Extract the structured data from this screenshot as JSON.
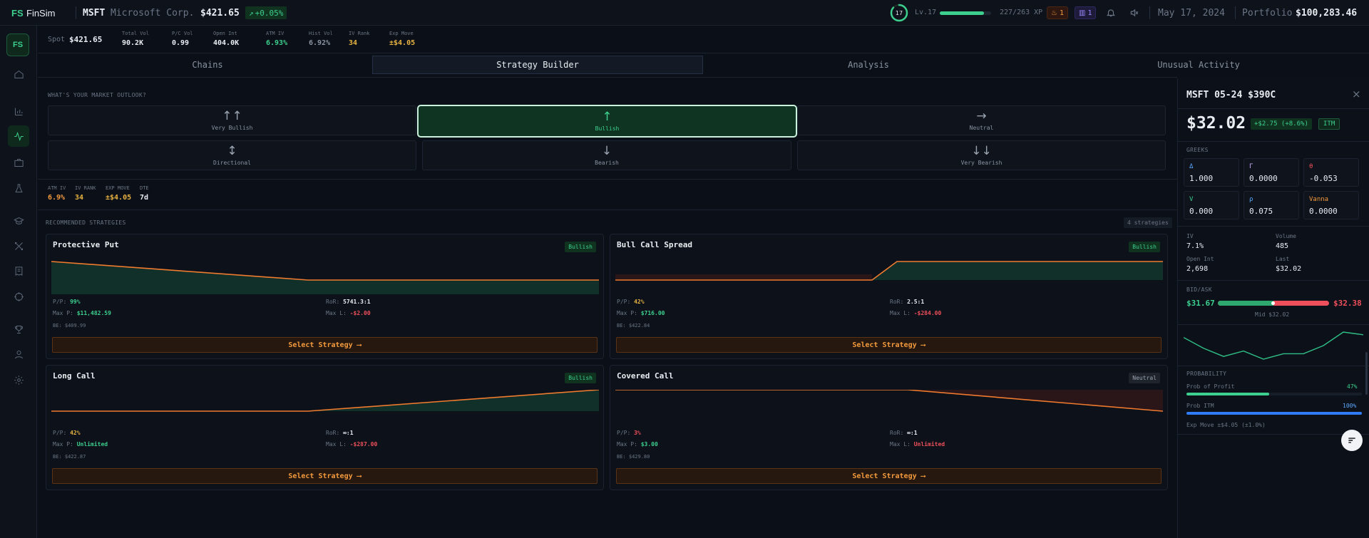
{
  "app": {
    "logo": "FS",
    "name": "FinSim"
  },
  "ticker": {
    "symbol": "MSFT",
    "company": "Microsoft Corp.",
    "price": "$421.65",
    "change": "+0.05%"
  },
  "player": {
    "level_ring": "17",
    "level": "Lv.17",
    "xp": "227/263 XP",
    "xp_fraction": 0.863,
    "streak": "1",
    "notices": "1"
  },
  "date": "May 17, 2024",
  "portfolio": {
    "label": "Portfolio",
    "value": "$100,283.46"
  },
  "stats": {
    "spot_label": "Spot",
    "spot": "$421.65",
    "items": [
      {
        "label": "Total Vol",
        "value": "90.2K"
      },
      {
        "label": "P/C Vol",
        "value": "0.99"
      },
      {
        "label": "Open Int",
        "value": "404.0K"
      },
      {
        "label": "ATM IV",
        "value": "6.93%"
      },
      {
        "label": "Hist Vol",
        "value": "6.92%"
      },
      {
        "label": "IV Rank",
        "value": "34"
      },
      {
        "label": "Exp Move",
        "value": "±$4.05"
      }
    ]
  },
  "tabs": [
    "Chains",
    "Strategy Builder",
    "Analysis",
    "Unusual Activity"
  ],
  "outlook": {
    "heading": "WHAT'S YOUR MARKET OUTLOOK?",
    "options": [
      {
        "label": "Very Bullish",
        "arrow": "↑↑"
      },
      {
        "label": "Bullish",
        "arrow": "↑"
      },
      {
        "label": "Neutral",
        "arrow": "→"
      },
      {
        "label": "Directional",
        "arrow": "↕"
      },
      {
        "label": "Bearish",
        "arrow": "↓"
      },
      {
        "label": "Very Bearish",
        "arrow": "↓↓"
      }
    ],
    "selected": "Bullish"
  },
  "mini_stats": [
    {
      "label": "ATM IV",
      "value": "6.9%"
    },
    {
      "label": "IV RANK",
      "value": "34"
    },
    {
      "label": "EXP MOVE",
      "value": "±$4.05"
    },
    {
      "label": "DTE",
      "value": "7d"
    }
  ],
  "recommended": {
    "heading": "RECOMMENDED STRATEGIES",
    "count": "4 strategies"
  },
  "strategies": [
    {
      "name": "Protective Put",
      "badge": "Bullish",
      "pp_label": "P/P:",
      "pp": "99%",
      "maxp_label": "Max P:",
      "maxp": "$11,482.59",
      "be": "BE: $409.99",
      "ror_label": "RoR:",
      "ror": "5741.3:1",
      "maxl_label": "Max L:",
      "maxl": "-$2.00",
      "button": "Select Strategy ⟶"
    },
    {
      "name": "Bull Call Spread",
      "badge": "Bullish",
      "pp_label": "P/P:",
      "pp": "42%",
      "maxp_label": "Max P:",
      "maxp": "$716.00",
      "be": "BE: $422.84",
      "ror_label": "RoR:",
      "ror": "2.5:1",
      "maxl_label": "Max L:",
      "maxl": "-$284.00",
      "button": "Select Strategy ⟶"
    },
    {
      "name": "Long Call",
      "badge": "Bullish",
      "pp_label": "P/P:",
      "pp": "42%",
      "maxp_label": "Max P:",
      "maxp": "Unlimited",
      "be": "BE: $422.87",
      "ror_label": "RoR:",
      "ror": "∞:1",
      "maxl_label": "Max L:",
      "maxl": "-$287.00",
      "button": "Select Strategy ⟶"
    },
    {
      "name": "Covered Call",
      "badge": "Neutral",
      "pp_label": "P/P:",
      "pp": "3%",
      "maxp_label": "Max P:",
      "maxp": "$3.00",
      "be": "BE: $429.80",
      "ror_label": "RoR:",
      "ror": "∞:1",
      "maxl_label": "Max L:",
      "maxl": "Unlimited",
      "button": "Select Strategy ⟶"
    }
  ],
  "panel": {
    "title": "MSFT 05-24 $390C",
    "price": "$32.02",
    "change": "+$2.75 (+8.6%)",
    "moneyness": "ITM",
    "greeks_heading": "GREEKS",
    "greeks": [
      {
        "sym": "Δ",
        "value": "1.000",
        "color": "#5aa8ff"
      },
      {
        "sym": "Γ",
        "value": "0.0000",
        "color": "#c9a9ff"
      },
      {
        "sym": "θ",
        "value": "-0.053",
        "color": "#ef4f5a"
      },
      {
        "sym": "V",
        "value": "0.000",
        "color": "#3ccf8e"
      },
      {
        "sym": "ρ",
        "value": "0.075",
        "color": "#5aa8ff"
      },
      {
        "sym": "Vanna",
        "value": "0.0000",
        "color": "#f39a3d"
      }
    ],
    "iv_label": "IV",
    "iv": "7.1%",
    "volume_label": "Volume",
    "volume": "485",
    "oi_label": "Open Int",
    "oi": "2,698",
    "last_label": "Last",
    "last": "$32.02",
    "bidask_heading": "BID/ASK",
    "bid": "$31.67",
    "ask": "$32.38",
    "mid": "Mid $32.02",
    "sparkline": [
      22,
      14,
      8,
      12,
      6,
      10,
      10,
      16,
      26,
      24
    ],
    "prob_heading": "PROBABILITY",
    "pop_label": "Prob of Profit",
    "pop": "47%",
    "pop_fraction": 0.47,
    "pitm_label": "Prob ITM",
    "pitm": "100%",
    "pitm_fraction": 1.0,
    "expmove": "Exp Move ±$4.05 (±1.0%)"
  },
  "colors": {
    "accent_green": "#3ccf8e",
    "accent_orange": "#f39a3d",
    "loss_red": "#ef4f5a",
    "bg": "#0b0f17"
  }
}
